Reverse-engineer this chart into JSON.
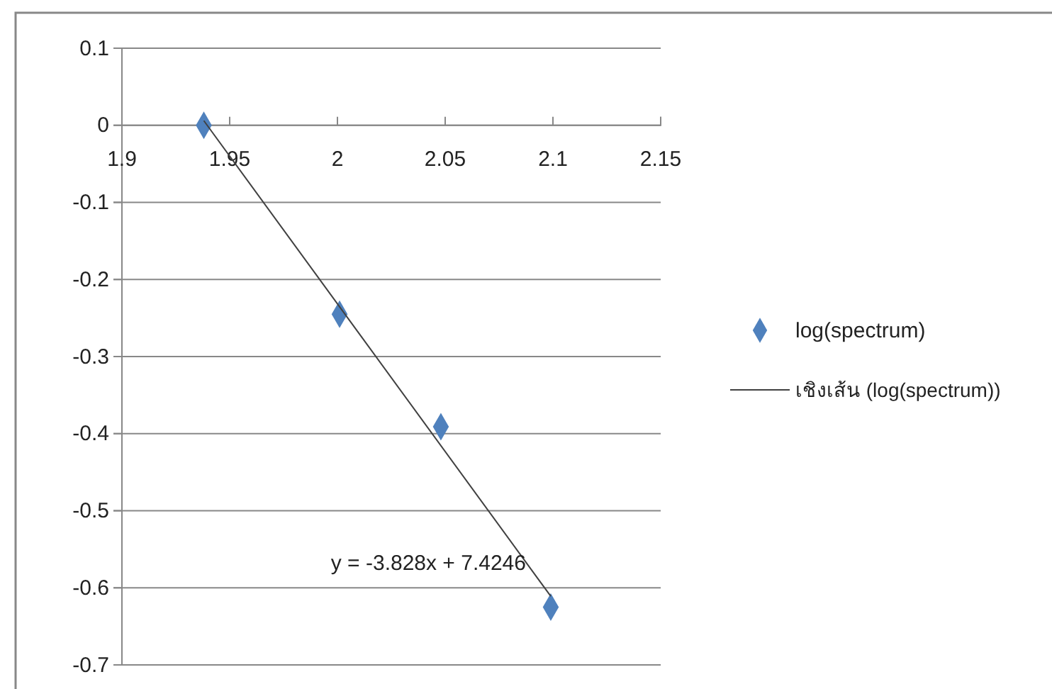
{
  "chart_data": {
    "type": "scatter",
    "x": [
      1.938,
      2.001,
      2.048,
      2.099
    ],
    "series": [
      {
        "name": "log(spectrum)",
        "color": "#4f81bd",
        "marker": "diamond",
        "values": [
          0,
          -0.245,
          -0.391,
          -0.625
        ]
      },
      {
        "name": "เชิงเส้น (log(spectrum))",
        "type": "line",
        "color": "#404040",
        "marker": "none",
        "line_style": "solid",
        "x": [
          1.938,
          2.099
        ],
        "values": [
          0.006,
          -0.611
        ]
      }
    ],
    "xlim": [
      1.9,
      2.15
    ],
    "xticks": [
      1.9,
      1.95,
      2,
      2.05,
      2.1,
      2.15
    ],
    "ylim": [
      -0.7,
      0.1
    ],
    "yticks": [
      -0.7,
      -0.6,
      -0.5,
      -0.4,
      -0.3,
      -0.2,
      -0.1,
      0,
      0.1
    ],
    "grid": "y",
    "legend": "right",
    "annotations": [
      "y = -3.828x + 7.4246"
    ]
  }
}
